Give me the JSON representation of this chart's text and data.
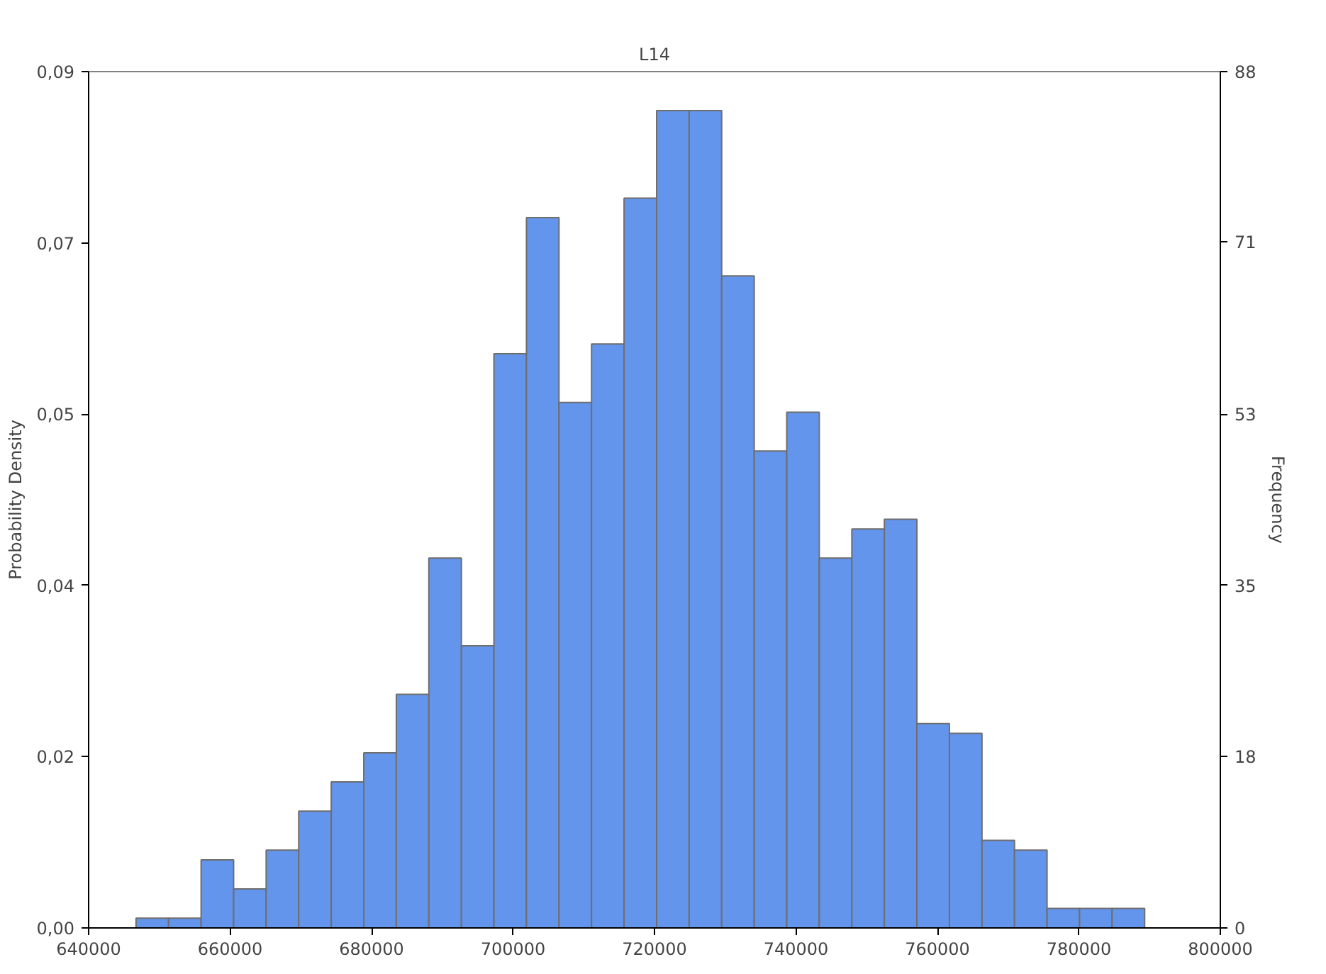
{
  "chart_data": {
    "type": "histogram",
    "title": "L14",
    "ylabel": "Probability Density",
    "y2label": "Frequency",
    "bins": [
      646700,
      651300,
      655900,
      660500,
      665100,
      669700,
      674300,
      678900,
      683500,
      688100,
      692700,
      697300,
      701900,
      706500,
      711100,
      715700,
      720300,
      724900,
      729500,
      734100,
      738700,
      743300,
      747900,
      752500,
      757100,
      761700,
      766300,
      770900,
      775500,
      780100,
      784700,
      789300
    ],
    "series": [
      {
        "color": "#6495ed",
        "axis": "y2",
        "values": [
          1,
          1,
          7,
          4,
          8,
          12,
          15,
          18,
          24,
          38,
          29,
          59,
          73,
          54,
          60,
          75,
          84,
          84,
          67,
          49,
          53,
          38,
          41,
          42,
          21,
          20,
          9,
          8,
          2,
          2,
          2
        ]
      }
    ],
    "xlim": [
      640000,
      800000
    ],
    "xticks": [
      640000,
      660000,
      680000,
      700000,
      720000,
      740000,
      760000,
      780000,
      800000
    ],
    "ylim": [
      0,
      0.09
    ],
    "yticks": [
      {
        "value": 0,
        "label": "0,00"
      },
      {
        "value": 0.018,
        "label": "0,02"
      },
      {
        "value": 0.036,
        "label": "0,04"
      },
      {
        "value": 0.054,
        "label": "0,05"
      },
      {
        "value": 0.072,
        "label": "0,07"
      },
      {
        "value": 0.09,
        "label": "0,09"
      }
    ],
    "y2lim": [
      0,
      88
    ],
    "y2ticks": [
      0,
      {
        "value": 17.6,
        "label": "18"
      },
      {
        "value": 35.2,
        "label": "35"
      },
      {
        "value": 52.8,
        "label": "53"
      },
      {
        "value": 70.5,
        "label": "71"
      },
      88
    ],
    "grid": false
  }
}
